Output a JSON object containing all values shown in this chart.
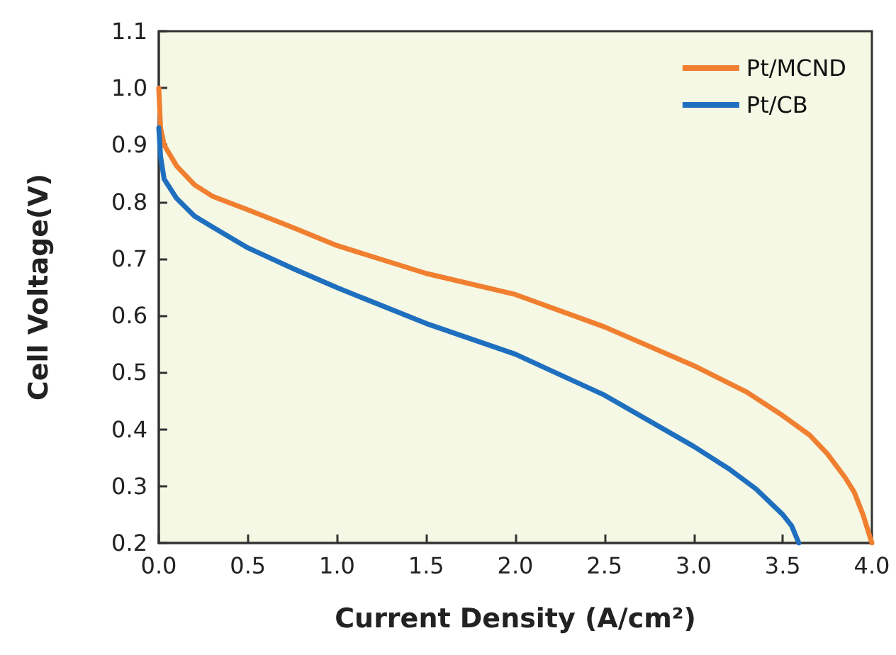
{
  "chart_data": {
    "type": "line",
    "xlabel": "Current Density (A/cm²)",
    "ylabel": "Cell Voltage(V)",
    "xlim": [
      0,
      4
    ],
    "xticks": [
      {
        "value": 0,
        "label": "0.0"
      },
      0.5,
      {
        "value": 1,
        "label": "1.0"
      },
      1.5,
      {
        "value": 2,
        "label": "2.0"
      },
      2.5,
      {
        "value": 3,
        "label": "3.0"
      },
      3.5,
      {
        "value": 4,
        "label": "4.0"
      }
    ],
    "ylim": [
      0.2,
      1.1
    ],
    "yticks": [
      0.2,
      0.3,
      0.4,
      0.5,
      0.6,
      0.7,
      0.8,
      0.9,
      {
        "value": 1,
        "label": "1.0"
      },
      1.1
    ],
    "grid": false,
    "legend": "top right",
    "marker": "none",
    "line_style": "solid",
    "series": [
      {
        "name": "Pt/MCND",
        "color": "#f07f30",
        "x": [
          0,
          0.01,
          0.03,
          0.1,
          0.2,
          0.3,
          0.5,
          0.75,
          1,
          1.5,
          2,
          2.5,
          3,
          3.3,
          3.5,
          3.65,
          3.75,
          3.85,
          3.9,
          3.95,
          4
        ],
        "values": [
          1,
          0.93,
          0.9,
          0.863,
          0.83,
          0.81,
          0.786,
          0.755,
          0.723,
          0.674,
          0.637,
          0.58,
          0.512,
          0.465,
          0.424,
          0.39,
          0.357,
          0.315,
          0.29,
          0.25,
          0.2
        ]
      },
      {
        "name": "Pt/CB",
        "color": "#1f6fbf",
        "x": [
          0,
          0.01,
          0.03,
          0.1,
          0.2,
          0.3,
          0.5,
          0.75,
          1,
          1.5,
          2,
          2.5,
          3,
          3.2,
          3.35,
          3.45,
          3.5,
          3.55,
          3.59
        ],
        "values": [
          0.93,
          0.88,
          0.84,
          0.806,
          0.775,
          0.756,
          0.719,
          0.683,
          0.649,
          0.586,
          0.532,
          0.46,
          0.37,
          0.33,
          0.295,
          0.265,
          0.25,
          0.23,
          0.2
        ]
      }
    ]
  }
}
